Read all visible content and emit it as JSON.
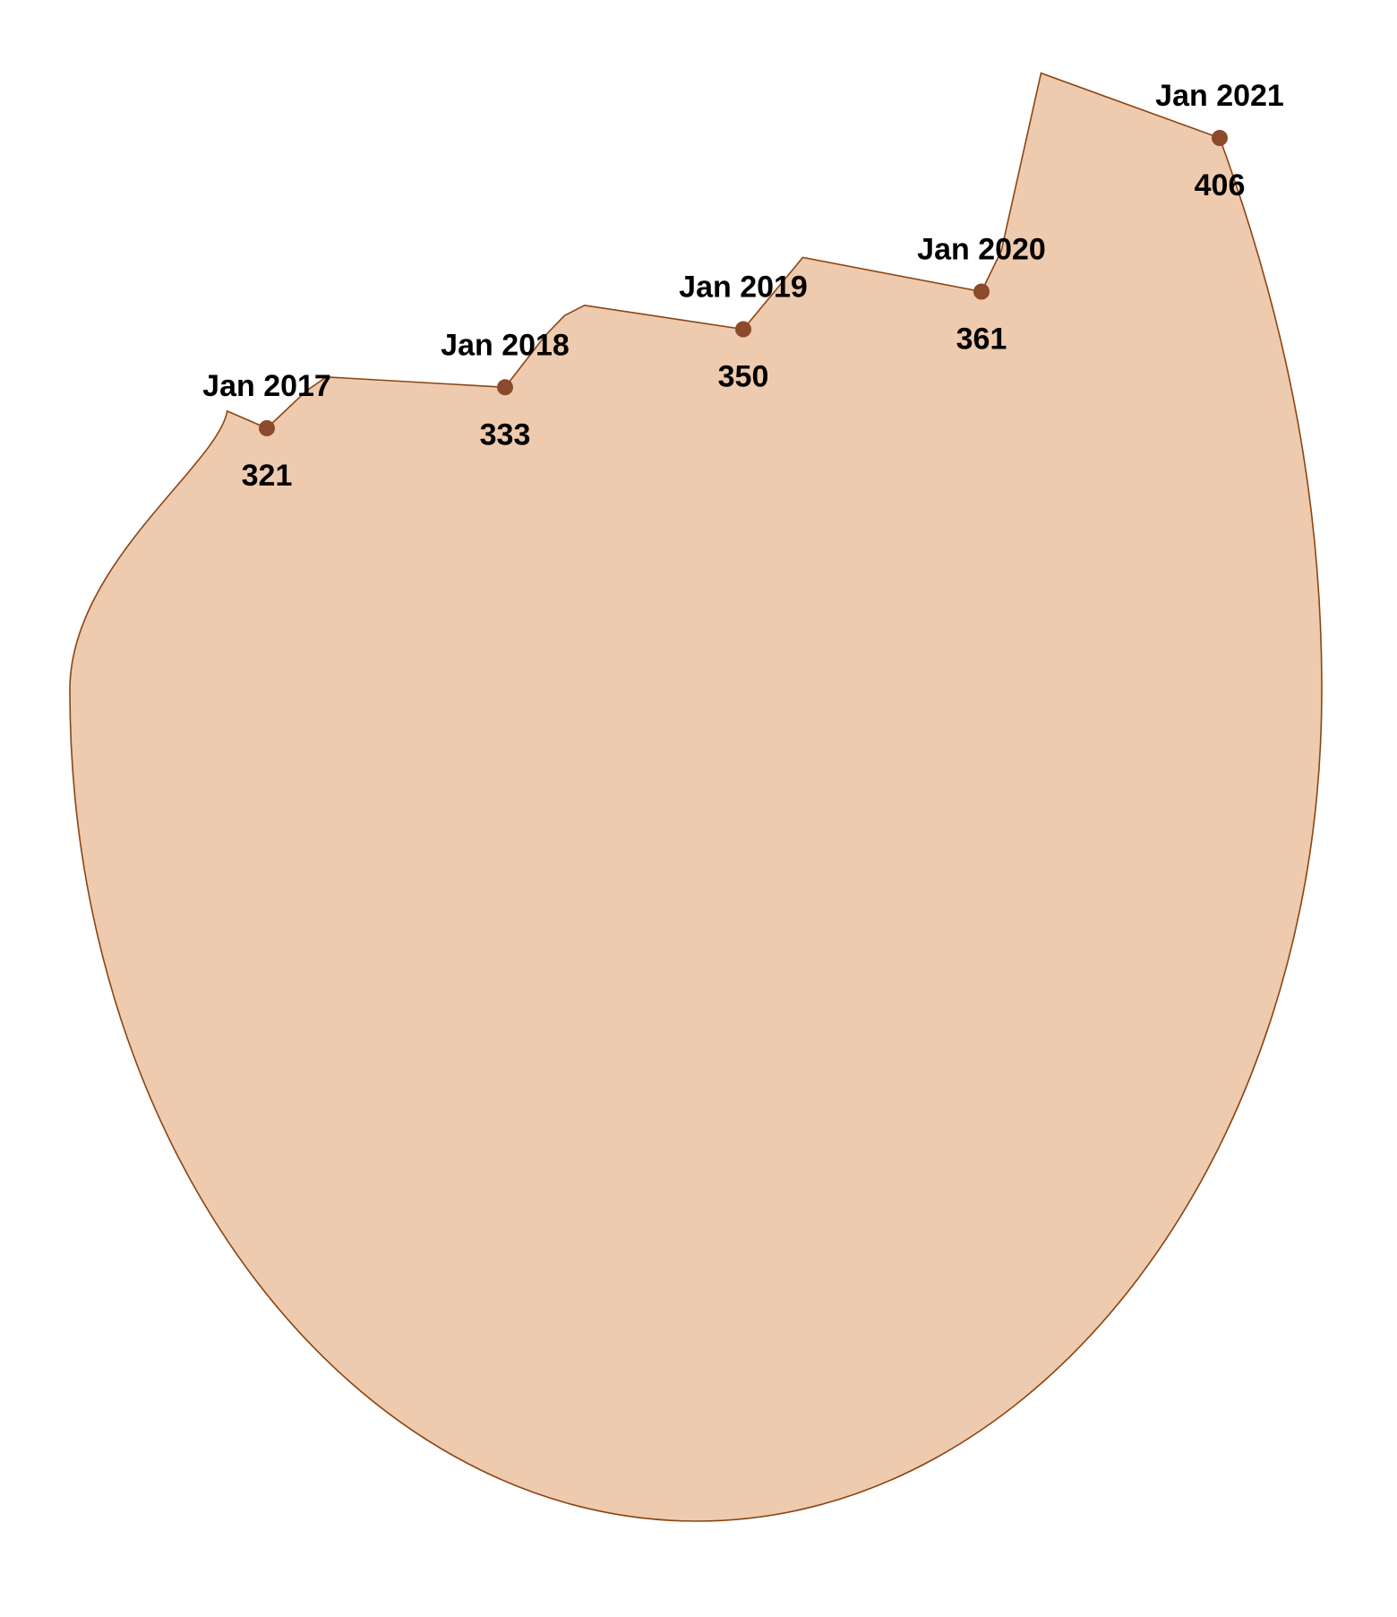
{
  "chart_data": {
    "type": "area",
    "title": "",
    "xlabel": "",
    "ylabel": "",
    "categories": [
      "Jan 2017",
      "Jan 2018",
      "Jan 2019",
      "Jan 2020",
      "Jan 2021"
    ],
    "values": [
      321,
      333,
      350,
      361,
      406
    ],
    "value_labels": [
      "321",
      "333",
      "350",
      "361",
      "406"
    ],
    "outline_points": [
      {
        "x": "Nov 2016",
        "y": 326
      },
      {
        "x": "Jan 2017",
        "y": 321
      },
      {
        "x": "Mar 2017",
        "y": 332
      },
      {
        "x": "Apr 2017",
        "y": 336
      },
      {
        "x": "Jan 2018",
        "y": 333
      },
      {
        "x": "Mar 2018",
        "y": 348
      },
      {
        "x": "Apr 2018",
        "y": 354
      },
      {
        "x": "May 2018",
        "y": 357
      },
      {
        "x": "Jan 2019",
        "y": 350
      },
      {
        "x": "Apr 2019",
        "y": 371
      },
      {
        "x": "Jan 2020",
        "y": 361
      },
      {
        "x": "Feb 2020",
        "y": 373
      },
      {
        "x": "Apr 2020",
        "y": 425
      },
      {
        "x": "Jan 2021",
        "y": 406
      }
    ],
    "grid": false,
    "legend": "none",
    "colors": {
      "fill": "#EECAAE",
      "stroke": "#8B4513",
      "marker": "#8B4A2B",
      "text": "#000000"
    }
  }
}
